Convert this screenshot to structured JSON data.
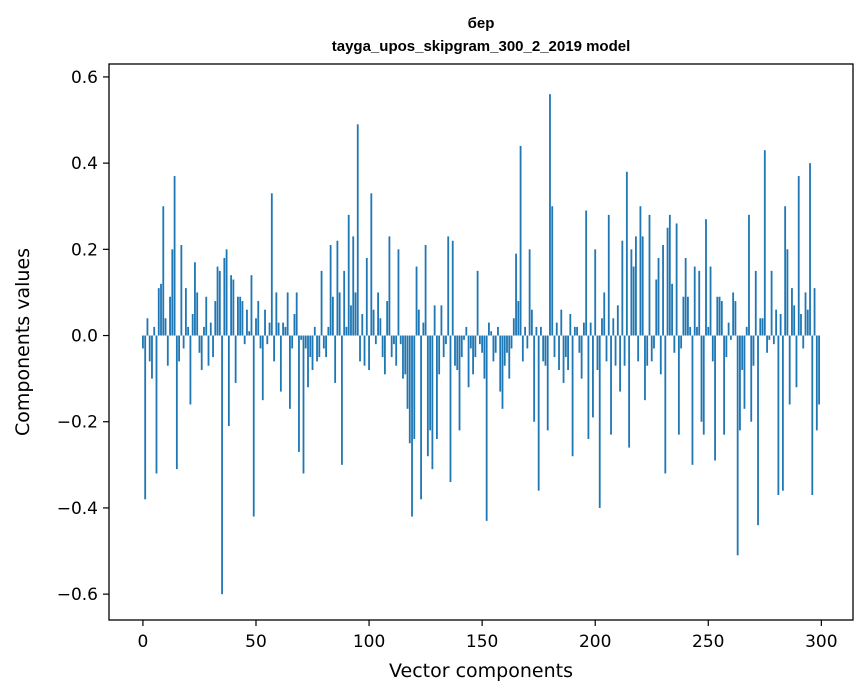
{
  "chart_data": {
    "type": "bar",
    "title_line1": "бер",
    "title_line2": "tayga_upos_skipgram_300_2_2019 model",
    "xlabel": "Vector components",
    "ylabel": "Components values",
    "xlim": [
      -15,
      314
    ],
    "ylim": [
      -0.66,
      0.63
    ],
    "xticks": [
      0,
      50,
      100,
      150,
      200,
      250,
      300
    ],
    "yticks": [
      -0.6,
      -0.4,
      -0.2,
      0.0,
      0.2,
      0.4,
      0.6
    ],
    "ytick_labels": [
      "−0.6",
      "−0.4",
      "−0.2",
      "0.0",
      "0.2",
      "0.4",
      "0.6"
    ],
    "bar_color": "#1f77b4",
    "values": [
      -0.03,
      -0.38,
      0.04,
      -0.06,
      -0.1,
      0.02,
      -0.32,
      0.11,
      0.12,
      0.3,
      0.04,
      -0.07,
      0.09,
      0.2,
      0.37,
      -0.31,
      -0.06,
      0.21,
      -0.03,
      0.11,
      0.02,
      -0.16,
      0.05,
      0.17,
      0.1,
      -0.04,
      -0.08,
      0.02,
      0.09,
      -0.07,
      0.03,
      -0.05,
      0.08,
      0.16,
      0.15,
      -0.6,
      0.18,
      0.2,
      -0.21,
      0.14,
      0.13,
      -0.11,
      0.09,
      0.09,
      0.08,
      -0.02,
      0.06,
      0.01,
      0.14,
      -0.42,
      0.04,
      0.08,
      -0.03,
      -0.15,
      0.06,
      -0.02,
      0.03,
      0.33,
      -0.06,
      0.1,
      0.03,
      -0.13,
      0.03,
      0.02,
      0.1,
      -0.17,
      -0.03,
      0.05,
      0.1,
      -0.27,
      -0.01,
      -0.32,
      -0.03,
      -0.12,
      -0.05,
      -0.08,
      0.02,
      -0.06,
      -0.05,
      0.15,
      -0.03,
      -0.05,
      0.02,
      0.21,
      0.09,
      -0.11,
      0.22,
      0.1,
      -0.3,
      0.15,
      0.02,
      0.28,
      0.07,
      0.23,
      0.1,
      0.49,
      -0.06,
      0.05,
      -0.07,
      0.18,
      -0.08,
      0.33,
      0.06,
      -0.02,
      0.1,
      0.04,
      -0.05,
      -0.09,
      0.08,
      0.23,
      -0.05,
      -0.02,
      -0.07,
      0.2,
      -0.02,
      -0.1,
      -0.09,
      -0.17,
      -0.25,
      -0.42,
      -0.24,
      0.16,
      0.06,
      -0.38,
      0.03,
      0.21,
      -0.28,
      -0.22,
      -0.31,
      0.07,
      -0.24,
      -0.09,
      0.07,
      -0.05,
      -0.02,
      0.23,
      -0.34,
      0.22,
      -0.07,
      -0.08,
      -0.22,
      -0.05,
      -0.01,
      0.02,
      -0.12,
      -0.03,
      -0.09,
      -0.05,
      0.15,
      -0.02,
      -0.04,
      -0.1,
      -0.43,
      0.03,
      0.01,
      -0.06,
      -0.04,
      0.02,
      -0.13,
      -0.17,
      -0.07,
      -0.04,
      -0.1,
      -0.03,
      0.04,
      0.19,
      0.08,
      0.44,
      -0.06,
      0.02,
      -0.03,
      0.2,
      0.06,
      -0.2,
      0.02,
      -0.36,
      0.02,
      -0.06,
      -0.07,
      -0.22,
      0.56,
      0.3,
      -0.05,
      0.03,
      -0.08,
      0.06,
      -0.11,
      -0.05,
      -0.08,
      0.05,
      -0.28,
      0.02,
      0.02,
      -0.04,
      -0.1,
      0.03,
      0.29,
      -0.24,
      0.03,
      -0.19,
      0.2,
      -0.08,
      -0.4,
      0.04,
      0.1,
      -0.06,
      0.28,
      -0.23,
      0.04,
      -0.07,
      0.07,
      -0.13,
      0.22,
      -0.07,
      0.38,
      -0.26,
      0.2,
      0.16,
      0.23,
      -0.06,
      0.3,
      0.23,
      -0.15,
      -0.07,
      0.28,
      -0.06,
      -0.03,
      0.13,
      0.18,
      -0.09,
      0.21,
      -0.32,
      0.25,
      0.28,
      0.12,
      -0.04,
      0.26,
      -0.23,
      -0.03,
      0.09,
      0.18,
      0.09,
      0.02,
      -0.3,
      0.16,
      0.02,
      0.15,
      -0.2,
      -0.23,
      0.27,
      0.02,
      0.16,
      -0.06,
      -0.29,
      0.09,
      0.09,
      0.08,
      -0.23,
      -0.05,
      0.03,
      -0.01,
      0.1,
      0.08,
      -0.51,
      -0.22,
      -0.08,
      -0.17,
      0.02,
      0.28,
      -0.2,
      -0.07,
      0.15,
      -0.44,
      0.04,
      0.04,
      0.43,
      -0.04,
      -0.01,
      0.15,
      -0.02,
      0.06,
      -0.37,
      0.05,
      -0.36,
      0.3,
      0.2,
      -0.16,
      0.11,
      0.07,
      -0.12,
      0.37,
      0.05,
      -0.03,
      0.1,
      0.06,
      0.4,
      -0.37,
      0.11,
      -0.22,
      -0.16
    ]
  }
}
